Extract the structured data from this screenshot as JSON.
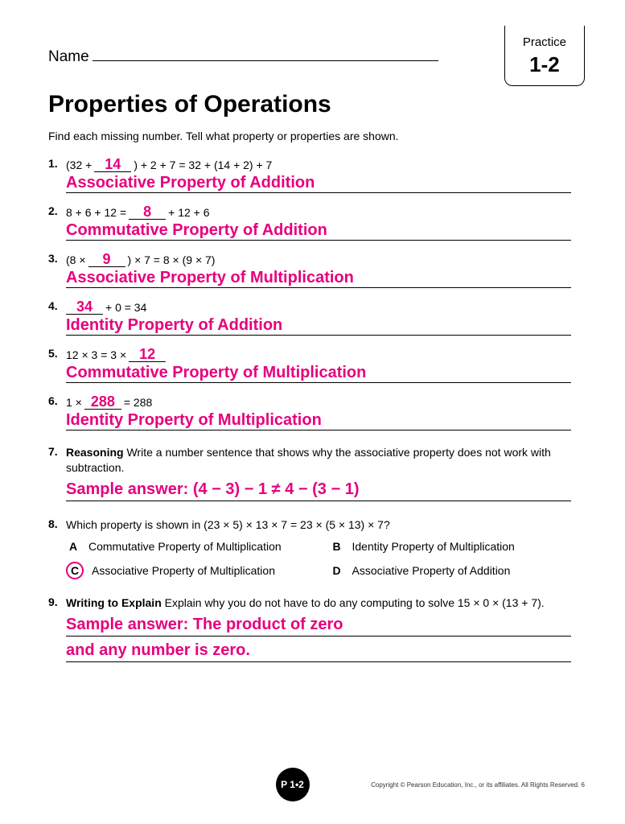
{
  "header": {
    "name_label": "Name",
    "practice_label": "Practice",
    "practice_number": "1-2"
  },
  "title": "Properties of Operations",
  "instructions": "Find each missing number. Tell what property or properties are shown.",
  "problems": [
    {
      "num": "1.",
      "eq_before": "(32 +",
      "blank": "14",
      "eq_after": ") + 2 + 7 = 32 + (14 + 2) + 7",
      "answer": "Associative Property of Addition"
    },
    {
      "num": "2.",
      "eq_before": "8 + 6 + 12 =",
      "blank": "8",
      "eq_after": "+ 12 + 6",
      "answer": "Commutative Property of Addition"
    },
    {
      "num": "3.",
      "eq_before": "(8 ×",
      "blank": "9",
      "eq_after": ") × 7 = 8 × (9 × 7)",
      "answer": "Associative Property of Multiplication"
    },
    {
      "num": "4.",
      "eq_before": "",
      "blank": "34",
      "eq_after": "+ 0 = 34",
      "answer": "Identity Property of Addition"
    },
    {
      "num": "5.",
      "eq_before": "12 × 3 = 3 ×",
      "blank": "12",
      "eq_after": "",
      "answer": "Commutative Property of Multiplication"
    },
    {
      "num": "6.",
      "eq_before": "1 ×",
      "blank": "288",
      "eq_after": "= 288",
      "answer": "Identity Property of Multiplication"
    }
  ],
  "q7": {
    "num": "7.",
    "label": "Reasoning",
    "text": "Write a number sentence that shows why the associative property does not work with subtraction.",
    "answer": "Sample answer: (4 − 3) − 1 ≠ 4 − (3 − 1)"
  },
  "q8": {
    "num": "8.",
    "text": "Which property is shown in (23 × 5) × 13 × 7 = 23 × (5 × 13) × 7?",
    "choices": {
      "A": "Commutative Property of Multiplication",
      "B": "Identity Property of Multiplication",
      "C": "Associative Property of Multiplication",
      "D": "Associative Property of Addition"
    },
    "correct": "C"
  },
  "q9": {
    "num": "9.",
    "label": "Writing to Explain",
    "text": "Explain why you do not have to do any computing to solve 15 × 0 × (13 + 7).",
    "answer_line1": "Sample answer: The product of zero",
    "answer_line2": "and any number is zero."
  },
  "footer": {
    "badge": "P 1•2",
    "copyright": "Copyright © Pearson Education, Inc., or its affiliates. All Rights Reserved.  6"
  },
  "colors": {
    "answer": "#e6007e",
    "text": "#000000",
    "bg": "#ffffff"
  }
}
